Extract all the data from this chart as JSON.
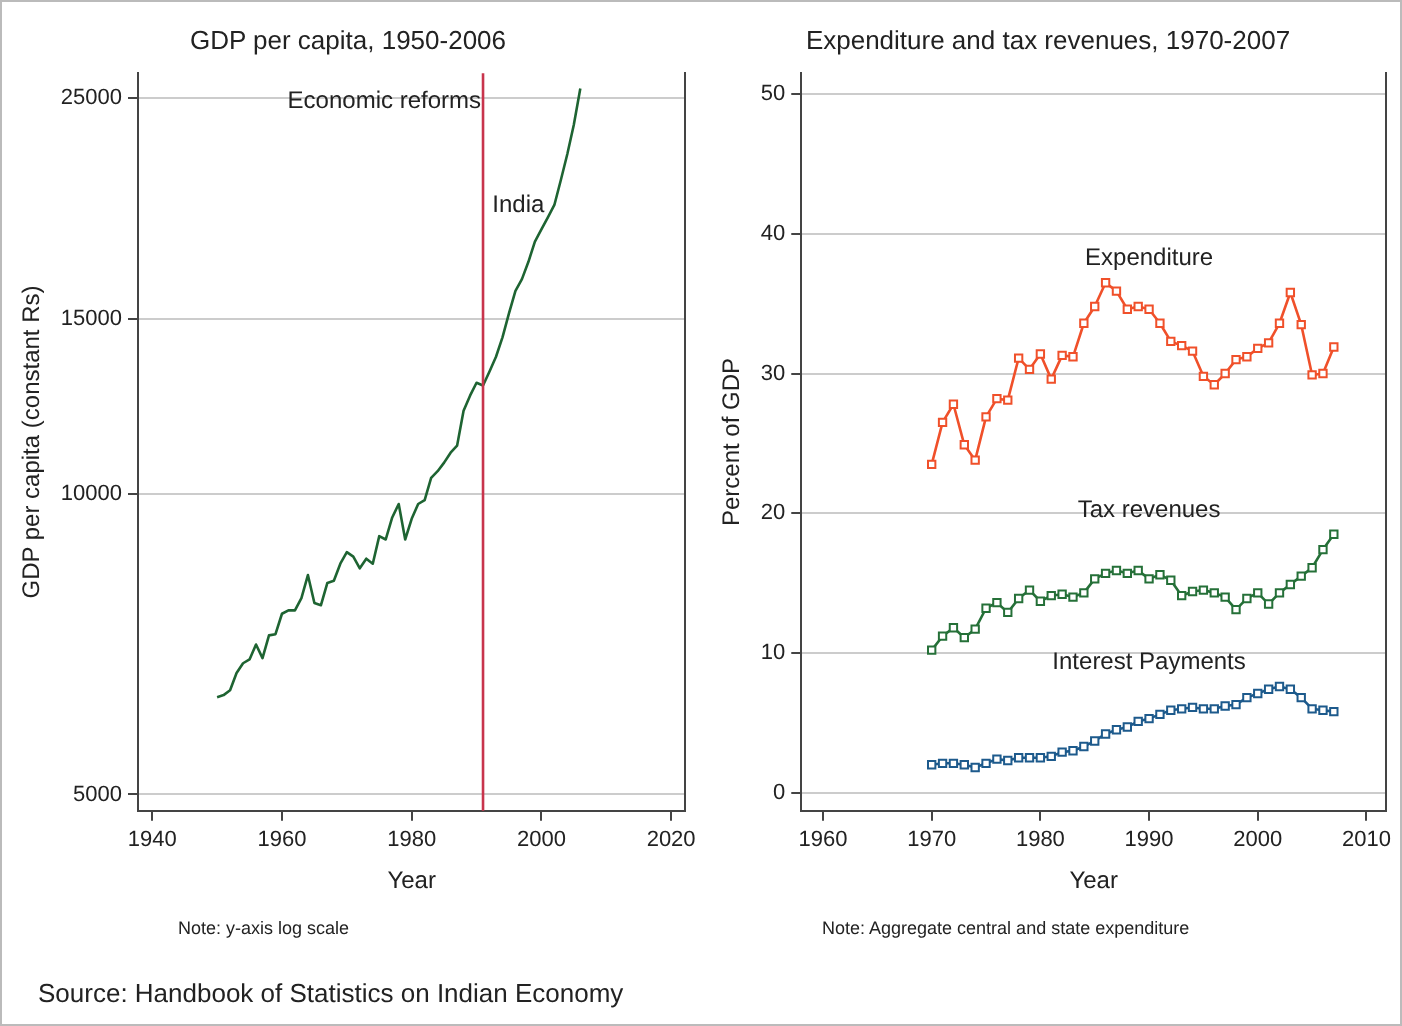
{
  "chart_data": [
    {
      "type": "line",
      "title": "GDP per capita, 1950-2006",
      "xlabel": "Year",
      "ylabel": "GDP per capita (constant Rs)",
      "x": [
        1950,
        1951,
        1952,
        1953,
        1954,
        1955,
        1956,
        1957,
        1958,
        1959,
        1960,
        1961,
        1962,
        1963,
        1964,
        1965,
        1966,
        1967,
        1968,
        1969,
        1970,
        1971,
        1972,
        1973,
        1974,
        1975,
        1976,
        1977,
        1978,
        1979,
        1980,
        1981,
        1982,
        1983,
        1984,
        1985,
        1986,
        1987,
        1988,
        1989,
        1990,
        1991,
        1992,
        1993,
        1994,
        1995,
        1996,
        1997,
        1998,
        1999,
        2000,
        2001,
        2002,
        2003,
        2004,
        2005,
        2006
      ],
      "series": [
        {
          "name": "India",
          "color": "#1e6432",
          "values": [
            6260,
            6290,
            6360,
            6620,
            6770,
            6830,
            7070,
            6850,
            7220,
            7240,
            7590,
            7650,
            7650,
            7870,
            8300,
            7780,
            7740,
            8150,
            8190,
            8520,
            8750,
            8660,
            8430,
            8620,
            8520,
            9080,
            9010,
            9480,
            9780,
            9010,
            9450,
            9780,
            9870,
            10390,
            10550,
            10760,
            11010,
            11190,
            12130,
            12560,
            12940,
            12860,
            13280,
            13740,
            14370,
            15190,
            16000,
            16440,
            17110,
            17930,
            18440,
            18960,
            19510,
            20670,
            21950,
            23480,
            25530
          ]
        }
      ],
      "xlim": [
        1937.8,
        2022.2
      ],
      "xticks": [
        1940,
        1960,
        1980,
        2000,
        2020
      ],
      "ylim": [
        4815,
        26450
      ],
      "yticks": [
        5000,
        10000,
        15000,
        25000
      ],
      "log": "y",
      "grid": "y",
      "legend": false,
      "marker": "none",
      "ref_lines": [
        {
          "axis": "x",
          "value": 1991,
          "label": "Economic reforms",
          "color": "#c8344c"
        }
      ],
      "annotations": [
        "Note: y-axis log scale",
        "Source: Handbook of Statistics on Indian Economy"
      ]
    },
    {
      "type": "line",
      "title": "Expenditure and tax revenues, 1970-2007",
      "xlabel": "Year",
      "ylabel": "Percent of GDP",
      "x": [
        1970,
        1971,
        1972,
        1973,
        1974,
        1975,
        1976,
        1977,
        1978,
        1979,
        1980,
        1981,
        1982,
        1983,
        1984,
        1985,
        1986,
        1987,
        1988,
        1989,
        1990,
        1991,
        1992,
        1993,
        1994,
        1995,
        1996,
        1997,
        1998,
        1999,
        2000,
        2001,
        2002,
        2003,
        2004,
        2005,
        2006,
        2007
      ],
      "series": [
        {
          "name": "Expenditure",
          "color": "#f0502a",
          "values": [
            23.5,
            26.5,
            27.8,
            24.9,
            23.8,
            26.9,
            28.2,
            28.1,
            31.1,
            30.3,
            31.4,
            29.6,
            31.3,
            31.2,
            33.6,
            34.8,
            36.5,
            35.9,
            34.6,
            34.8,
            34.6,
            33.6,
            32.3,
            32.0,
            31.6,
            29.8,
            29.2,
            30.0,
            31.0,
            31.2,
            31.8,
            32.2,
            33.6,
            35.8,
            33.5,
            29.9,
            30.0,
            31.9
          ]
        },
        {
          "name": "Tax revenues",
          "color": "#257038",
          "values": [
            10.2,
            11.2,
            11.8,
            11.1,
            11.7,
            13.2,
            13.6,
            12.9,
            13.9,
            14.5,
            13.7,
            14.1,
            14.2,
            14.0,
            14.3,
            15.3,
            15.7,
            15.9,
            15.7,
            15.9,
            15.3,
            15.6,
            15.2,
            14.1,
            14.4,
            14.5,
            14.3,
            14.0,
            13.1,
            13.9,
            14.3,
            13.5,
            14.3,
            14.9,
            15.5,
            16.1,
            17.4,
            18.5
          ]
        },
        {
          "name": "Interest Payments",
          "color": "#1d5a8c",
          "values": [
            2.0,
            2.1,
            2.1,
            2.0,
            1.8,
            2.1,
            2.4,
            2.3,
            2.5,
            2.5,
            2.5,
            2.6,
            2.9,
            3.0,
            3.3,
            3.7,
            4.2,
            4.5,
            4.7,
            5.1,
            5.3,
            5.6,
            5.9,
            6.0,
            6.1,
            6.0,
            6.0,
            6.2,
            6.3,
            6.8,
            7.1,
            7.4,
            7.6,
            7.4,
            6.8,
            6.0,
            5.9,
            5.8
          ]
        }
      ],
      "xlim": [
        1958,
        2011.8
      ],
      "xticks": [
        1960,
        1970,
        1980,
        1990,
        2000,
        2010
      ],
      "ylim": [
        -1.3,
        51.5
      ],
      "yticks": [
        0,
        10,
        20,
        30,
        40,
        50
      ],
      "grid": "y",
      "legend": false,
      "marker": "square",
      "annotations": [
        "Note: Aggregate central and state expenditure"
      ]
    }
  ]
}
